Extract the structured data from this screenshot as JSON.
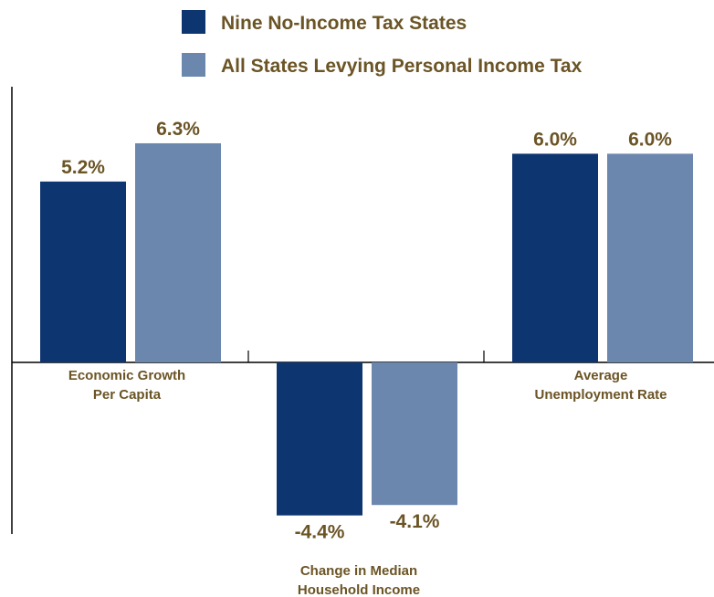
{
  "chart_data": {
    "type": "bar",
    "categories": [
      [
        "Economic Growth",
        "Per Capita"
      ],
      [
        "Change in Median",
        "Household Income"
      ],
      [
        "Average",
        "Unemployment Rate"
      ]
    ],
    "series": [
      {
        "name": "Nine No-Income Tax States",
        "color": "#0d3570",
        "values": [
          5.2,
          -4.4,
          6.0
        ],
        "labels": [
          "5.2%",
          "-4.4%",
          "6.0%"
        ]
      },
      {
        "name": "All States Levying Personal Income Tax",
        "color": "#6b87ad",
        "values": [
          6.3,
          -4.1,
          6.0
        ],
        "labels": [
          "6.3%",
          "-4.1%",
          "6.0%"
        ]
      }
    ],
    "ylim": [
      -5.0,
      8.0
    ],
    "legend_position": "top-center",
    "grid": false,
    "label_color": "#6b5425"
  }
}
